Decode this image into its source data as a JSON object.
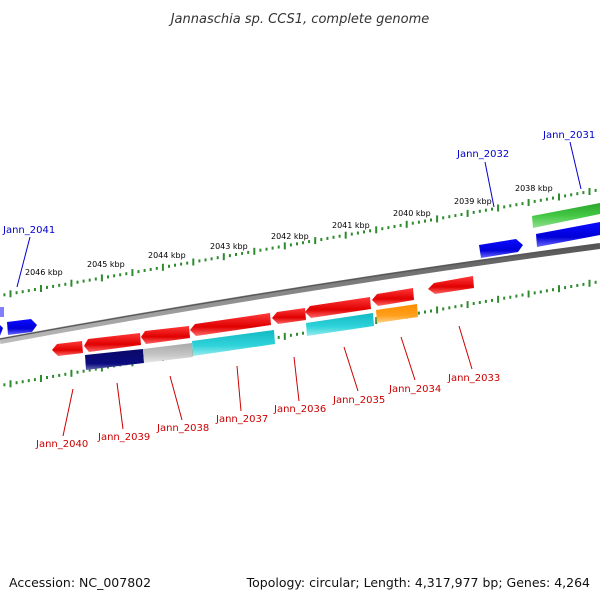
{
  "header": {
    "title": "Jannaschia sp. CCS1, complete genome"
  },
  "scale": {
    "tick_color": "#2e8b2e",
    "labels": [
      "2046 kbp",
      "2045 kbp",
      "2044 kbp",
      "2043 kbp",
      "2042 kbp",
      "2041 kbp",
      "2040 kbp",
      "2039 kbp",
      "2038 kbp"
    ]
  },
  "genes": {
    "forward": [
      {
        "name": "Jann_2041",
        "color": "#0000ee"
      },
      {
        "name": "Jann_2032",
        "color": "#0000ee"
      },
      {
        "name": "Jann_2031",
        "color": "#0000ee"
      }
    ],
    "reverse": [
      {
        "name": "Jann_2040",
        "color": "#cc0000"
      },
      {
        "name": "Jann_2039",
        "color": "#cc0000"
      },
      {
        "name": "Jann_2038",
        "color": "#cc0000"
      },
      {
        "name": "Jann_2037",
        "color": "#cc0000"
      },
      {
        "name": "Jann_2036",
        "color": "#cc0000"
      },
      {
        "name": "Jann_2035",
        "color": "#cc0000"
      },
      {
        "name": "Jann_2034",
        "color": "#cc0000"
      },
      {
        "name": "Jann_2033",
        "color": "#cc0000"
      }
    ]
  },
  "colors": {
    "backbone": "#7f7f7f",
    "cds_red": "#ee1111",
    "cds_blue": "#0000ee",
    "cds_green": "#33bb33",
    "cog_navy": "#0b0b7a",
    "cog_grey": "#bdbdbd",
    "cog_cyan": "#22c8d0",
    "cog_orange": "#ff9900"
  },
  "footer": {
    "accession": "Accession: NC_007802",
    "topology": "Topology: circular; Length: 4,317,977 bp; Genes: 4,264"
  }
}
